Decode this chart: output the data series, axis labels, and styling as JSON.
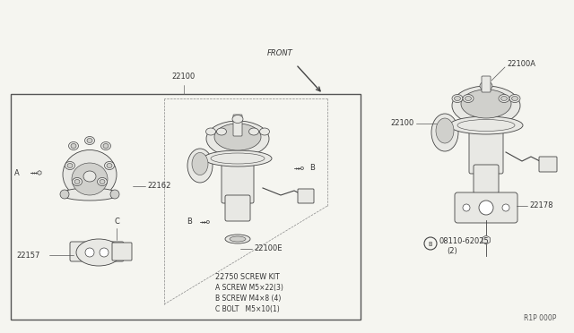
{
  "bg_color": "#f5f5f0",
  "line_color": "#444444",
  "label_color": "#333333",
  "diagram_ref": "R1P 000P",
  "screw_kit_lines": [
    "22750 SCREW KIT",
    "A SCREW M5×22(3)",
    "B SCREW M4×8 (4)",
    "C BOLT   M5×10(1)"
  ],
  "font_size_label": 6.0,
  "font_size_kit": 5.5
}
